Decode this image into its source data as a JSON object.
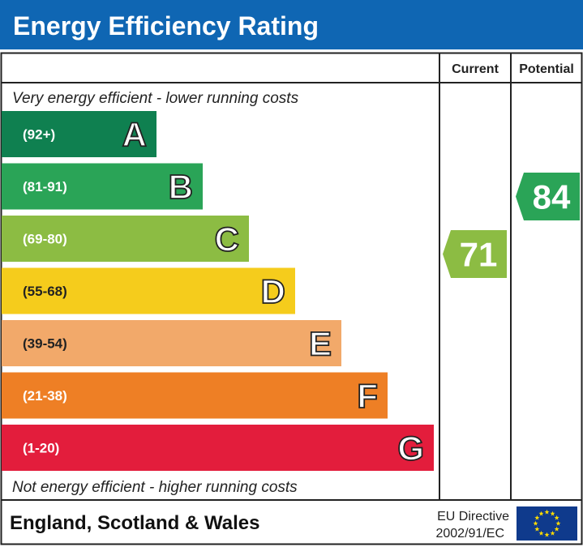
{
  "title": "Energy Efficiency Rating",
  "columns": {
    "current": "Current",
    "potential": "Potential"
  },
  "top_note": "Very energy efficient - lower running costs",
  "bottom_note": "Not energy efficient - higher running costs",
  "footer": {
    "region": "England, Scotland & Wales",
    "directive_line1": "EU Directive",
    "directive_line2": "2002/91/EC"
  },
  "colors": {
    "header": "#0f66b3",
    "eu_flag": "#0f3a8c",
    "eu_stars": "#ffdd00"
  },
  "chart_data": {
    "type": "bar",
    "categories": [
      "A",
      "B",
      "C",
      "D",
      "E",
      "F",
      "G"
    ],
    "ranges": [
      "(92+)",
      "(81-91)",
      "(69-80)",
      "(55-68)",
      "(39-54)",
      "(21-38)",
      "(1-20)"
    ],
    "colors": [
      "#0f8050",
      "#2aa457",
      "#8cbc43",
      "#f5cc1c",
      "#f2a96a",
      "#ee7f25",
      "#e31d3c"
    ],
    "current": {
      "value": 71,
      "band": "C"
    },
    "potential": {
      "value": 84,
      "band": "B"
    }
  }
}
